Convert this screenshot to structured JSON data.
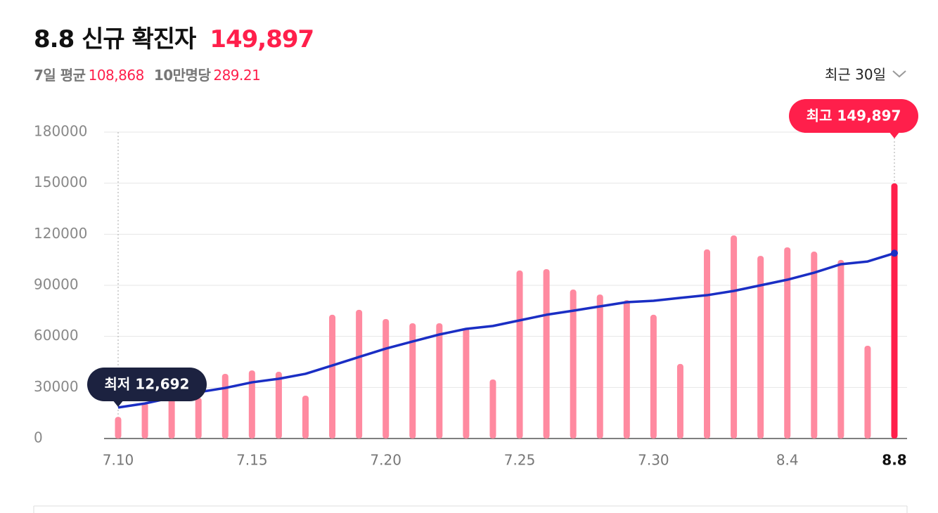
{
  "header": {
    "title": "8.8 신규 확진자",
    "headline": "149,897",
    "avg_label": "7일 평균",
    "avg_value": "108,868",
    "per_label": "10만명당",
    "per_value": "289.21",
    "range_selector": "최근 30일"
  },
  "chart_data": {
    "type": "bar",
    "categories": [
      "7.10",
      null,
      null,
      null,
      null,
      "7.15",
      null,
      null,
      null,
      null,
      "7.20",
      null,
      null,
      null,
      null,
      "7.25",
      null,
      null,
      null,
      null,
      "7.30",
      null,
      null,
      null,
      null,
      "8.4",
      null,
      null,
      null,
      "8.8"
    ],
    "series": [
      {
        "type": "bar",
        "color": "#ff8aa0",
        "highlight_color": "#ff1f4b",
        "values": [
          12692,
          21000,
          25000,
          24000,
          38000,
          40000,
          39200,
          25200,
          72700,
          75600,
          70200,
          67700,
          67700,
          64800,
          34700,
          98700,
          99500,
          87500,
          84600,
          81300,
          72700,
          43800,
          111100,
          119300,
          107300,
          112300,
          109800,
          104900,
          54500,
          149897
        ]
      },
      {
        "type": "line",
        "color": "#1a2ec4",
        "values": [
          18200,
          20600,
          24000,
          27200,
          29700,
          33000,
          35100,
          38000,
          42900,
          47900,
          52800,
          57000,
          61100,
          64400,
          66100,
          69400,
          72700,
          75100,
          77600,
          80100,
          80900,
          82600,
          84200,
          86700,
          90000,
          93300,
          97400,
          102400,
          104000,
          108868
        ]
      }
    ],
    "min_label": "최저 12,692",
    "max_label": "최고 149,897",
    "ylim": [
      0,
      180000
    ],
    "yticks": [
      0,
      30000,
      60000,
      90000,
      120000,
      150000,
      180000
    ],
    "grid": true
  }
}
